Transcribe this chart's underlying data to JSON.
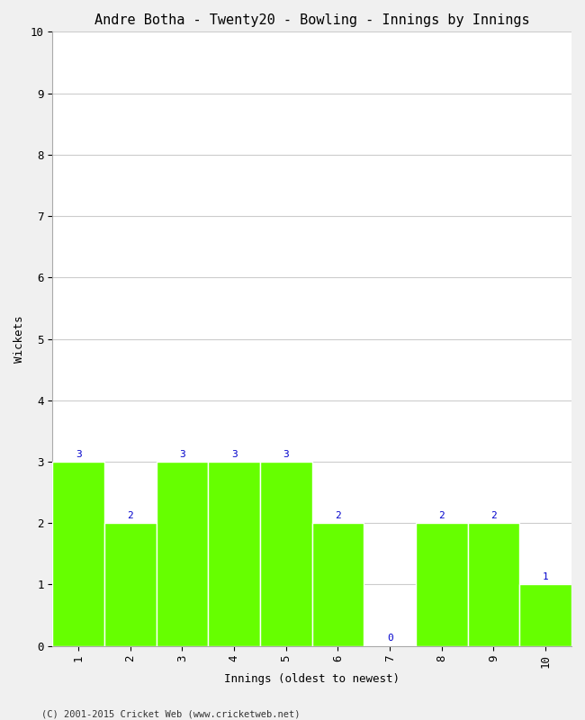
{
  "title": "Andre Botha - Twenty20 - Bowling - Innings by Innings",
  "xlabel": "Innings (oldest to newest)",
  "ylabel": "Wickets",
  "categories": [
    "1",
    "2",
    "3",
    "4",
    "5",
    "6",
    "7",
    "8",
    "9",
    "10"
  ],
  "values": [
    3,
    2,
    3,
    3,
    3,
    2,
    0,
    2,
    2,
    1
  ],
  "bar_color": "#66ff00",
  "bar_edge_color": "#ffffff",
  "ylim": [
    0,
    10
  ],
  "yticks": [
    0,
    1,
    2,
    3,
    4,
    5,
    6,
    7,
    8,
    9,
    10
  ],
  "label_color": "#0000cc",
  "background_color": "#f0f0f0",
  "plot_bg_color": "#ffffff",
  "grid_color": "#cccccc",
  "footer": "(C) 2001-2015 Cricket Web (www.cricketweb.net)",
  "title_fontsize": 11,
  "axis_label_fontsize": 9,
  "tick_fontsize": 9,
  "bar_label_fontsize": 8
}
